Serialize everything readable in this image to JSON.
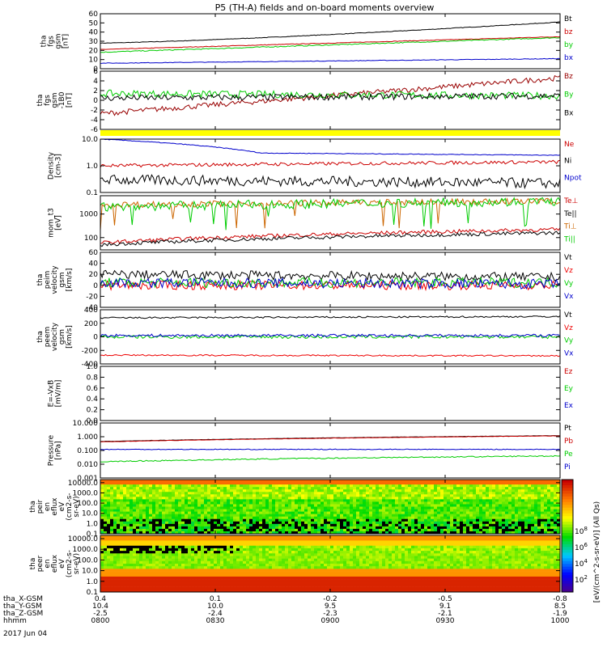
{
  "title": "P5 (TH-A) fields and on-board moments overview",
  "date_label": "2017 Jun 04",
  "footer": {
    "row_labels": [
      "tha_X-GSM",
      "tha_Y-GSM",
      "tha_Z-GSM",
      "hhmm"
    ],
    "columns": [
      {
        "x": "0.4",
        "y": "10.4",
        "z": "-2.5",
        "hhmm": "0800"
      },
      {
        "x": "0.1",
        "y": "10.0",
        "z": "-2.4",
        "hhmm": "0830"
      },
      {
        "x": "-0.2",
        "y": "9.5",
        "z": "-2.3",
        "hhmm": "0900"
      },
      {
        "x": "-0.5",
        "y": "9.1",
        "z": "-2.1",
        "hhmm": "0930"
      },
      {
        "x": "-0.8",
        "y": "8.5",
        "z": "-1.9",
        "hhmm": "1000"
      }
    ]
  },
  "colorbar_label": "[eV/(cm^2-s-sr-eV)] (All Qs)",
  "chart_data": [
    {
      "type": "line",
      "id": "fgs",
      "ylabel": [
        "tha",
        "fgs",
        "gsm",
        "[nT]"
      ],
      "ylim": [
        0,
        60
      ],
      "yticks": [
        "0",
        "10",
        "20",
        "30",
        "40",
        "50",
        "60"
      ],
      "series": [
        {
          "name": "Bt",
          "color": "#000000",
          "start": 28,
          "end": 51,
          "noise": 0.3
        },
        {
          "name": "bz",
          "color": "#cc0000",
          "start": 21,
          "end": 35,
          "noise": 0.3
        },
        {
          "name": "by",
          "color": "#00cc00",
          "start": 18,
          "end": 34,
          "noise": 0.5
        },
        {
          "name": "bx",
          "color": "#0000cc",
          "start": 6,
          "end": 11,
          "noise": 0.3
        }
      ]
    },
    {
      "type": "line",
      "id": "fgs_dtrnd",
      "ylabel": [
        "tha",
        "fgs",
        "gsm",
        "-1B0",
        "[nT]"
      ],
      "ylim": [
        -7,
        6
      ],
      "yticks": [
        "-6",
        "-4",
        "-2",
        "0",
        "2",
        "4",
        "6"
      ],
      "series": [
        {
          "name": "Bz",
          "color": "#990000",
          "start": -3.5,
          "end": 4.5,
          "noise": 0.6
        },
        {
          "name": "By",
          "color": "#00cc00",
          "start": 1,
          "end": 0.5,
          "noise": 0.8
        },
        {
          "name": "Bx",
          "color": "#000000",
          "start": 0,
          "end": 0.5,
          "noise": 0.7
        }
      ]
    },
    {
      "type": "bar",
      "id": "flag",
      "values": [
        1
      ],
      "color": "#ffff00"
    },
    {
      "type": "line",
      "id": "density",
      "ylabel": [
        "Density",
        "[cm-3]"
      ],
      "log": true,
      "ylim": [
        0.1,
        10
      ],
      "yticks": [
        "0.1",
        "1.0",
        "10.0"
      ],
      "series": [
        {
          "name": "Ne",
          "color": "#cc0000",
          "start": 1.0,
          "end": 1.4,
          "noise": 0.05
        },
        {
          "name": "Ni",
          "color": "#000000",
          "start": 0.3,
          "end": 0.22,
          "noise": 0.15
        },
        {
          "name": "Npot",
          "color": "#0000cc",
          "start": 10,
          "end": 2.5,
          "noise": 0.01
        }
      ]
    },
    {
      "type": "line",
      "id": "temp",
      "ylabel": [
        "mom_t3",
        "[eV]"
      ],
      "log": true,
      "ylim": [
        30,
        6000
      ],
      "yticks": [
        "100",
        "1000"
      ],
      "series": [
        {
          "name": "Te⊥",
          "color": "#cc0000",
          "start": 60,
          "end": 220,
          "noise": 0.06
        },
        {
          "name": "Te||",
          "color": "#000000",
          "start": 50,
          "end": 160,
          "noise": 0.06
        },
        {
          "name": "Ti⊥",
          "color": "#cc6600",
          "start": 2500,
          "end": 3500,
          "noise": 0.1
        },
        {
          "name": "Ti||",
          "color": "#00cc00",
          "start": 2000,
          "end": 3500,
          "noise": 0.15
        }
      ]
    },
    {
      "type": "line",
      "id": "peim_vel",
      "ylabel": [
        "tha",
        "peim",
        "velocity",
        "gsm",
        "[km/s]"
      ],
      "ylim": [
        -40,
        60
      ],
      "yticks": [
        "-40",
        "-20",
        "0",
        "20",
        "40",
        "60"
      ],
      "series": [
        {
          "name": "Vt",
          "color": "#000000",
          "start": 20,
          "end": 15,
          "noise": 8
        },
        {
          "name": "Vz",
          "color": "#ee0000",
          "start": 0,
          "end": 0,
          "noise": 8
        },
        {
          "name": "Vy",
          "color": "#00cc00",
          "start": 5,
          "end": 5,
          "noise": 9
        },
        {
          "name": "Vx",
          "color": "#0000cc",
          "start": 5,
          "end": 2,
          "noise": 9
        }
      ]
    },
    {
      "type": "line",
      "id": "peem_vel",
      "ylabel": [
        "tha",
        "peem",
        "velocity",
        "gsm",
        "[km/s]"
      ],
      "ylim": [
        -400,
        400
      ],
      "yticks": [
        "-400",
        "-200",
        "0",
        "200",
        "400"
      ],
      "series": [
        {
          "name": "Vt",
          "color": "#000000",
          "start": 280,
          "end": 300,
          "noise": 12
        },
        {
          "name": "Vz",
          "color": "#ee0000",
          "start": -270,
          "end": -280,
          "noise": 10
        },
        {
          "name": "Vy",
          "color": "#00cc00",
          "start": 0,
          "end": 0,
          "noise": 25
        },
        {
          "name": "Vx",
          "color": "#0000cc",
          "start": 20,
          "end": 20,
          "noise": 20
        }
      ]
    },
    {
      "type": "line",
      "id": "efield",
      "ylabel": [
        "E=-VxB",
        "[mV/m]"
      ],
      "ylim": [
        0,
        1
      ],
      "yticks": [
        "0.0",
        "0.2",
        "0.4",
        "0.6",
        "0.8",
        "1.0"
      ],
      "series": [
        {
          "name": "Ez",
          "color": "#cc0000",
          "values": []
        },
        {
          "name": "Ey",
          "color": "#00cc00",
          "values": []
        },
        {
          "name": "Ex",
          "color": "#0000cc",
          "values": []
        }
      ]
    },
    {
      "type": "line",
      "id": "pressure",
      "ylabel": [
        "Pressure",
        "[nPa]"
      ],
      "log": true,
      "ylim": [
        0.001,
        10
      ],
      "yticks": [
        "0.001",
        "0.010",
        "0.100",
        "1.000",
        "10.000"
      ],
      "series": [
        {
          "name": "Pt",
          "color": "#000000",
          "start": 0.45,
          "end": 1.2,
          "noise": 0.01
        },
        {
          "name": "Pb",
          "color": "#cc0000",
          "start": 0.42,
          "end": 1.15,
          "noise": 0.01
        },
        {
          "name": "Pe",
          "color": "#00cc00",
          "start": 0.015,
          "end": 0.04,
          "noise": 0.03
        },
        {
          "name": "Pi",
          "color": "#0000cc",
          "start": 0.12,
          "end": 0.12,
          "noise": 0.02
        }
      ]
    },
    {
      "type": "heatmap",
      "id": "peir",
      "ylabel": [
        "tha",
        "peir",
        "en",
        "eflux",
        "eV",
        "(cm2-s-",
        "sr-eV)"
      ],
      "log": true,
      "ylim": [
        0.1,
        20000
      ],
      "yticks": [
        "0.1",
        "1.0",
        "10.0",
        "100.0",
        "1000.0",
        "10000.0"
      ]
    },
    {
      "type": "heatmap",
      "id": "peer",
      "ylabel": [
        "tha",
        "peer",
        "en",
        "eflux",
        "eV",
        "(cm2-s-",
        "sr-eV)"
      ],
      "log": true,
      "ylim": [
        0.1,
        20000
      ],
      "yticks": [
        "0.1",
        "1.0",
        "10.0",
        "100.0",
        "1000.0",
        "10000.0"
      ]
    },
    {
      "type": "colorbar",
      "ticks": [
        "10^2",
        "10^4",
        "10^6",
        "10^8"
      ]
    }
  ]
}
